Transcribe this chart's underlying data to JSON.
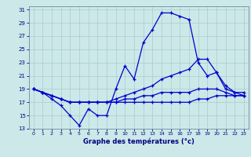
{
  "xlabel": "Graphe des températures (°c)",
  "bg_color": "#cce8e8",
  "grid_color": "#aacccc",
  "line_color": "#0000cc",
  "ylim": [
    13,
    31
  ],
  "xlim": [
    0,
    23
  ],
  "yticks": [
    13,
    15,
    17,
    19,
    21,
    23,
    25,
    27,
    29,
    31
  ],
  "xticks": [
    0,
    1,
    2,
    3,
    4,
    5,
    6,
    7,
    8,
    9,
    10,
    11,
    12,
    13,
    14,
    15,
    16,
    17,
    18,
    19,
    20,
    21,
    22,
    23
  ],
  "max_temps": [
    19,
    18.5,
    17.5,
    16.5,
    15.0,
    13.5,
    16.0,
    15.0,
    15.0,
    19.0,
    22.5,
    20.5,
    26.0,
    28.0,
    30.5,
    30.5,
    30.0,
    29.5,
    23.0,
    21.0,
    21.5,
    19.0,
    18.5,
    18.0
  ],
  "upper_mid": [
    19,
    18.5,
    18.0,
    17.5,
    17.0,
    17.0,
    17.0,
    17.0,
    17.0,
    17.5,
    18.0,
    18.5,
    19.0,
    19.5,
    20.5,
    21.0,
    21.5,
    22.0,
    23.5,
    23.5,
    21.5,
    19.5,
    18.5,
    18.5
  ],
  "lower_mid": [
    19,
    18.5,
    18.0,
    17.5,
    17.0,
    17.0,
    17.0,
    17.0,
    17.0,
    17.0,
    17.5,
    17.5,
    18.0,
    18.0,
    18.5,
    18.5,
    18.5,
    18.5,
    19.0,
    19.0,
    19.0,
    18.5,
    18.0,
    18.0
  ],
  "min_temps": [
    19,
    18.5,
    18.0,
    17.5,
    17.0,
    17.0,
    17.0,
    17.0,
    17.0,
    17.0,
    17.0,
    17.0,
    17.0,
    17.0,
    17.0,
    17.0,
    17.0,
    17.0,
    17.5,
    17.5,
    18.0,
    18.0,
    18.0,
    18.0
  ]
}
